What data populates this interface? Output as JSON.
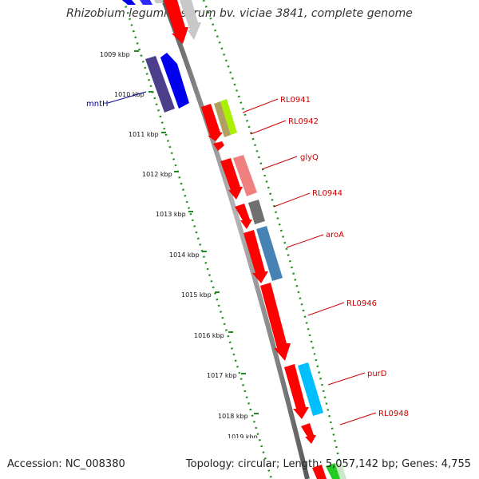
{
  "title": "Rhizobium leguminosarum bv. viciae 3841, complete genome",
  "accession": "Accession: NC_008380",
  "summary": "Topology: circular; Length: 5,057,142 bp; Genes: 4,755",
  "kbp_labels": [
    "1009 kbp",
    "1010 kbp",
    "1011 kbp",
    "1012 kbp",
    "1013 kbp",
    "1014 kbp",
    "1015 kbp",
    "1016 kbp",
    "1017 kbp",
    "1018 kbp",
    "1019 kbp"
  ],
  "gene_labels": [
    {
      "text": "mntH",
      "color": "#00008b"
    },
    {
      "text": "RL0941",
      "color": "#cc0000"
    },
    {
      "text": "RL0942",
      "color": "#cc0000"
    },
    {
      "text": "glyQ",
      "color": "#cc0000"
    },
    {
      "text": "RL0944",
      "color": "#cc0000"
    },
    {
      "text": "aroA",
      "color": "#cc0000"
    },
    {
      "text": "RL0946",
      "color": "#cc0000"
    },
    {
      "text": "purD",
      "color": "#cc0000"
    },
    {
      "text": "RL0948",
      "color": "#cc0000"
    }
  ],
  "colors": {
    "backbone": "#808080",
    "ruler_dots": "#228b22",
    "ruler_ticks": "#228b22",
    "cds_forward": "#ff0000",
    "mnth_dark": "#4b3f8c",
    "mnth_blue": "#0000ee",
    "rl0942_olive": "#b0a060",
    "rl0942_lime": "#a8f000",
    "glyq_pink": "#f08080",
    "rl0944_gray": "#707070",
    "aroa_steel": "#4682b4",
    "purd_cyan": "#00bfff",
    "green_bottom": "#22cc22",
    "light_gray": "#c8c8c8"
  }
}
